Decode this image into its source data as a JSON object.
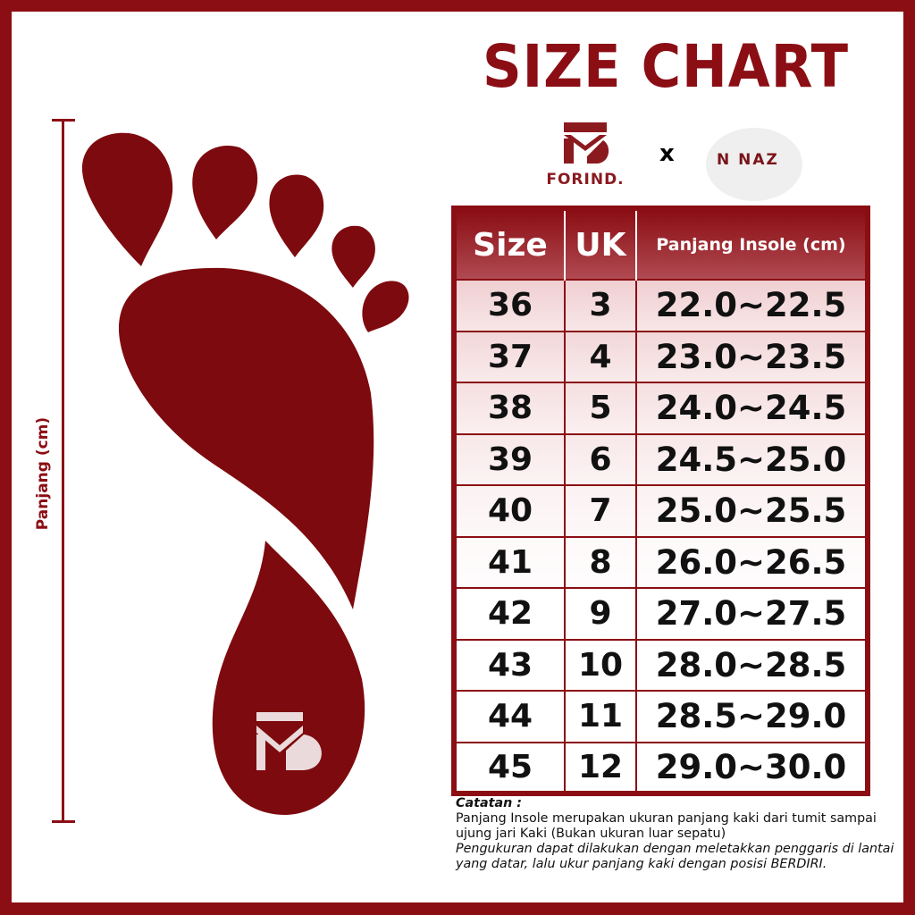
{
  "title": "SIZE CHART",
  "brands": {
    "left": "FORIND.",
    "separator": "x",
    "right": "NAZ"
  },
  "ruler_label": "Panjang (cm)",
  "table": {
    "headers": [
      "Size",
      "UK",
      "Panjang Insole (cm)"
    ],
    "rows": [
      [
        "36",
        "3",
        "22.0~22.5"
      ],
      [
        "37",
        "4",
        "23.0~23.5"
      ],
      [
        "38",
        "5",
        "24.0~24.5"
      ],
      [
        "39",
        "6",
        "24.5~25.0"
      ],
      [
        "40",
        "7",
        "25.0~25.5"
      ],
      [
        "41",
        "8",
        "26.0~26.5"
      ],
      [
        "42",
        "9",
        "27.0~27.5"
      ],
      [
        "43",
        "10",
        "28.0~28.5"
      ],
      [
        "44",
        "11",
        "28.5~29.0"
      ],
      [
        "45",
        "12",
        "29.0~30.0"
      ]
    ]
  },
  "note": {
    "heading": "Catatan :",
    "line1": "Panjang Insole merupakan ukuran panjang kaki dari tumit sampai ujung jari Kaki (Bukan ukuran luar sepatu)",
    "line2": "Pengukuran dapat dilakukan dengan meletakkan penggaris di lantai yang datar, lalu ukur panjang kaki dengan posisi BERDIRI."
  },
  "colors": {
    "brand": "#8b0e14"
  }
}
